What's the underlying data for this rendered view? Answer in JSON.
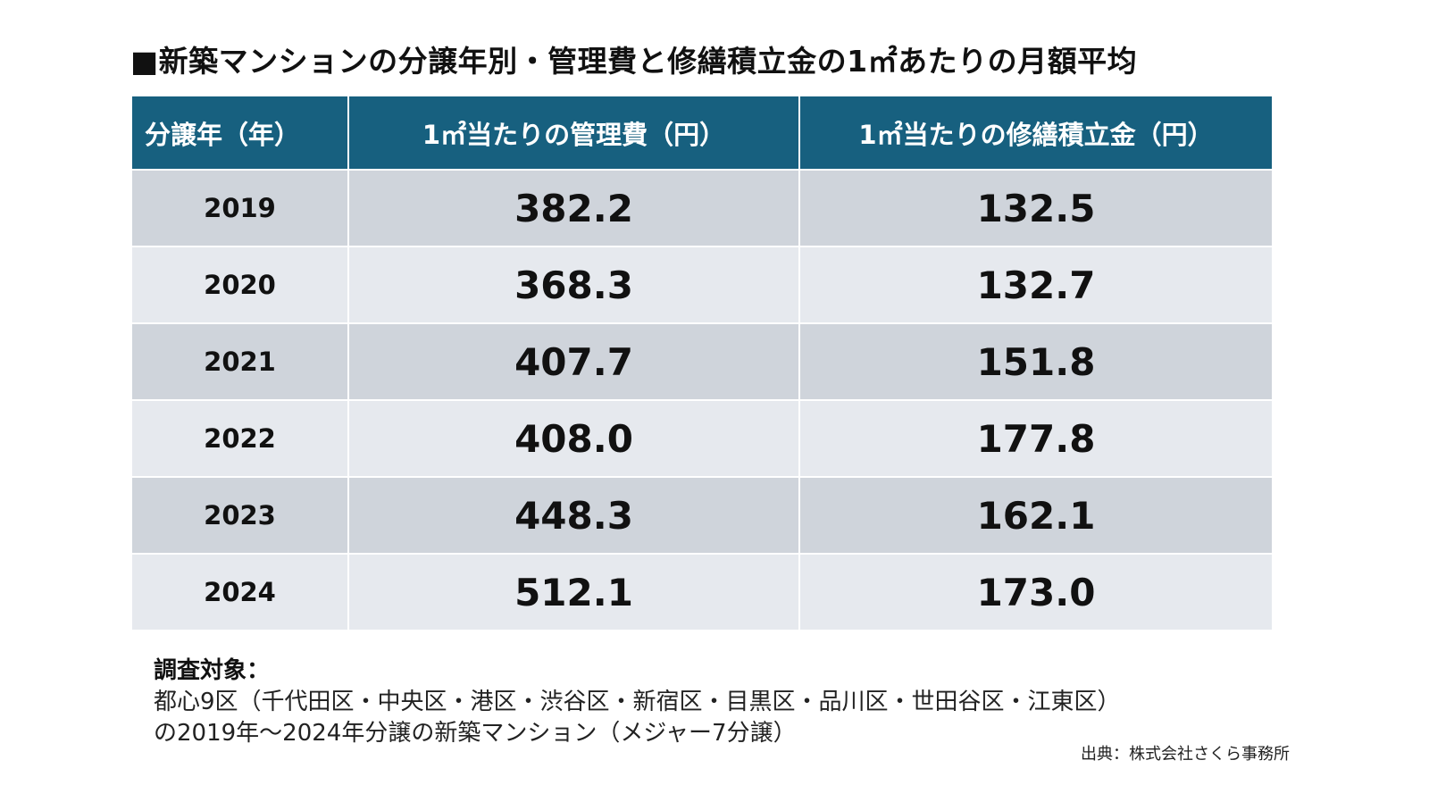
{
  "title": "■新築マンションの分譲年別・管理費と修繕積立金の1㎡あたりの月額平均",
  "table": {
    "header": [
      "分譲年（年）",
      "1㎡当たりの管理費（円）",
      "1㎡当たりの修繕積立金（円）"
    ],
    "rows": [
      [
        "2019",
        "382.2",
        "132.5"
      ],
      [
        "2020",
        "368.3",
        "132.7"
      ],
      [
        "2021",
        "407.7",
        "151.8"
      ],
      [
        "2022",
        "408.0",
        "177.8"
      ],
      [
        "2023",
        "448.3",
        "162.1"
      ],
      [
        "2024",
        "512.1",
        "173.0"
      ]
    ]
  },
  "note": {
    "title": "調査対象：",
    "lines": [
      "都心9区（千代田区・中央区・港区・渋谷区・新宿区・目黒区・品川区・世田谷区・江東区）",
      "の2019年～2024年分譲の新築マンション（メジャー7分譲）"
    ]
  },
  "source": "出典：株式会社さくら事務所"
}
